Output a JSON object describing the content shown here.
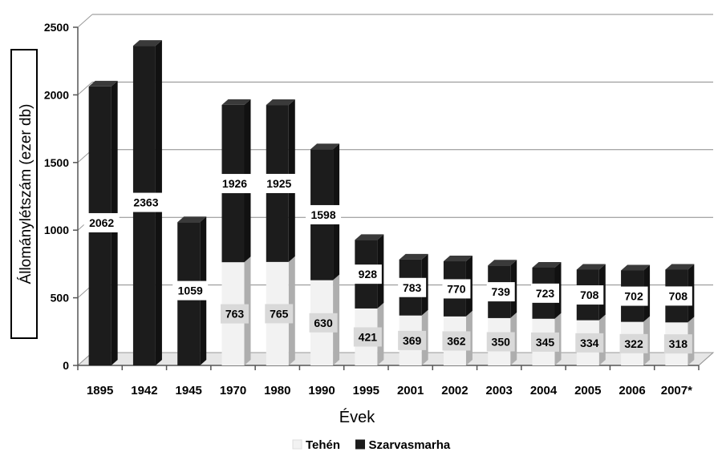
{
  "chart_data": {
    "type": "bar",
    "stacked": true,
    "three_d": true,
    "categories": [
      "1895",
      "1942",
      "1945",
      "1970",
      "1980",
      "1990",
      "1995",
      "2001",
      "2002",
      "2003",
      "2004",
      "2005",
      "2006",
      "2007*"
    ],
    "series": [
      {
        "name": "Tehén",
        "color": "#f2f2f2",
        "values": [
          null,
          null,
          null,
          763,
          765,
          630,
          421,
          369,
          362,
          350,
          345,
          334,
          322,
          318
        ]
      },
      {
        "name": "Szarvasmarha",
        "color": "#1c1c1c",
        "values": [
          2062,
          2363,
          1059,
          1926,
          1925,
          1598,
          928,
          783,
          770,
          739,
          723,
          708,
          702,
          708
        ]
      }
    ],
    "xlabel": "Évek",
    "ylabel": "Állománylétszám (ezer db)",
    "ylim": [
      0,
      2500
    ],
    "yticks": [
      0,
      500,
      1000,
      1500,
      2000,
      2500
    ],
    "grid": true,
    "legend_position": "bottom"
  }
}
